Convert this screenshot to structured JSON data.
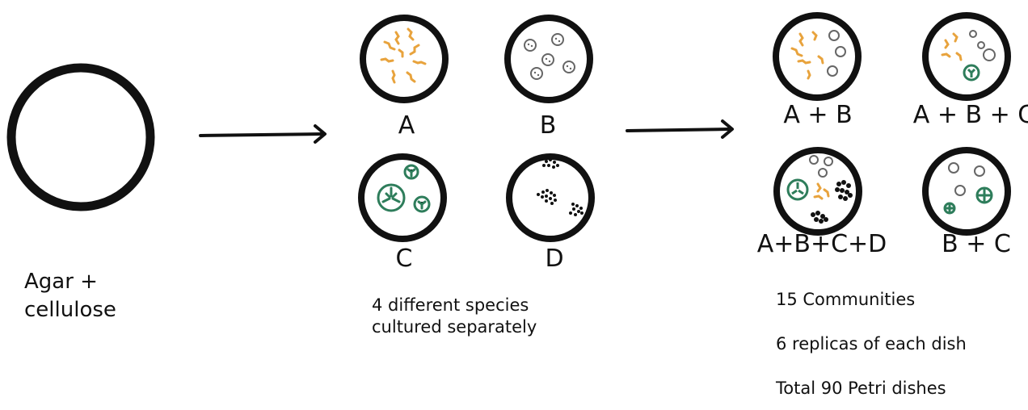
{
  "substrate": {
    "line1": "Agar +",
    "line2": "cellulose"
  },
  "species": {
    "a": "A",
    "b": "B",
    "c": "C",
    "d": "D",
    "caption_line1": "4 different species",
    "caption_line2": "cultured separately"
  },
  "communities": {
    "ab": "A + B",
    "abc": "A + B + C",
    "abcd": "A+B+C+D",
    "bc": "B + C",
    "count_text": "15 Communities",
    "replicas_text": "6 replicas of each dish",
    "total_text": "Total 90 Petri dishes"
  },
  "colors": {
    "outline": "#111111",
    "species_a": "#E8A33D",
    "species_b": "#8A8A8A",
    "species_c": "#2E7D5B",
    "species_d": "#111111"
  }
}
